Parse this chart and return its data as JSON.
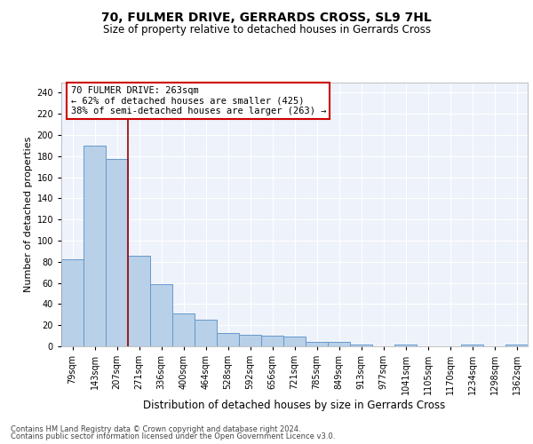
{
  "title": "70, FULMER DRIVE, GERRARDS CROSS, SL9 7HL",
  "subtitle": "Size of property relative to detached houses in Gerrards Cross",
  "xlabel": "Distribution of detached houses by size in Gerrards Cross",
  "ylabel": "Number of detached properties",
  "categories": [
    "79sqm",
    "143sqm",
    "207sqm",
    "271sqm",
    "336sqm",
    "400sqm",
    "464sqm",
    "528sqm",
    "592sqm",
    "656sqm",
    "721sqm",
    "785sqm",
    "849sqm",
    "913sqm",
    "977sqm",
    "1041sqm",
    "1105sqm",
    "1170sqm",
    "1234sqm",
    "1298sqm",
    "1362sqm"
  ],
  "values": [
    82,
    190,
    177,
    86,
    59,
    31,
    25,
    13,
    11,
    10,
    9,
    4,
    4,
    2,
    0,
    2,
    0,
    0,
    2,
    0,
    2
  ],
  "bar_color": "#b8d0e8",
  "bar_edge_color": "#6699cc",
  "bg_color": "#eef2fa",
  "grid_color": "#ffffff",
  "vline_x": 2.5,
  "vline_color": "#990000",
  "annotation_line1": "70 FULMER DRIVE: 263sqm",
  "annotation_line2": "← 62% of detached houses are smaller (425)",
  "annotation_line3": "38% of semi-detached houses are larger (263) →",
  "annotation_box_facecolor": "#ffffff",
  "annotation_box_edgecolor": "#cc0000",
  "footer_line1": "Contains HM Land Registry data © Crown copyright and database right 2024.",
  "footer_line2": "Contains public sector information licensed under the Open Government Licence v3.0.",
  "ylim": [
    0,
    250
  ],
  "yticks": [
    0,
    20,
    40,
    60,
    80,
    100,
    120,
    140,
    160,
    180,
    200,
    220,
    240
  ],
  "title_fontsize": 10,
  "subtitle_fontsize": 8.5,
  "ylabel_fontsize": 8,
  "xlabel_fontsize": 8.5,
  "tick_fontsize": 7,
  "footer_fontsize": 6,
  "annotation_fontsize": 7.5
}
